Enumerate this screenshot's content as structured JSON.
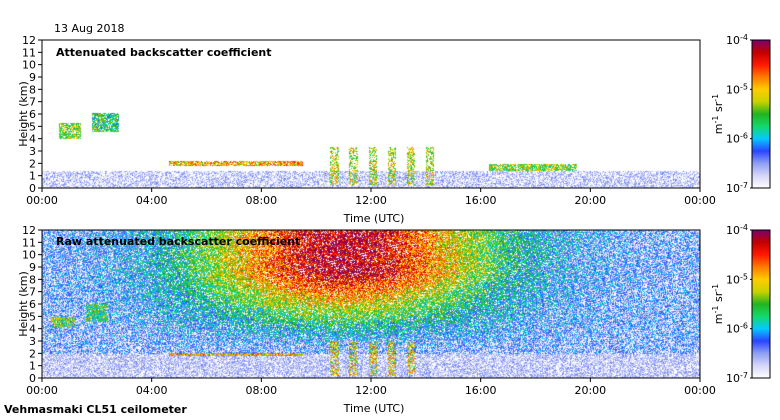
{
  "date": "13 Aug 2018",
  "footer": "Vehmasmaki CL51 ceilometer",
  "colors": {
    "colormap": [
      "#ffffff",
      "#d6d6f8",
      "#8e9ff4",
      "#2a45ff",
      "#06c8ff",
      "#13d96a",
      "#23b41f",
      "#c9d200",
      "#ffcc00",
      "#ff7a00",
      "#ff1800",
      "#c20000",
      "#7a006e"
    ]
  },
  "chart_data": [
    {
      "type": "heatmap",
      "title": "Attenuated backscatter coefficient",
      "xlabel": "Time (UTC)",
      "ylabel": "Height (km)",
      "x_ticks": [
        "00:00",
        "04:00",
        "08:00",
        "12:00",
        "16:00",
        "20:00",
        "00:00"
      ],
      "y_ticks": [
        "0",
        "1",
        "2",
        "3",
        "4",
        "5",
        "6",
        "7",
        "8",
        "9",
        "10",
        "11",
        "12"
      ],
      "xlim_hours": [
        0,
        24
      ],
      "ylim_km": [
        0,
        12
      ],
      "colorbar": {
        "scale": "log",
        "range": [
          1e-07,
          0.0001
        ],
        "tick_labels": [
          {
            "base": "10",
            "exp": "-4"
          },
          {
            "base": "10",
            "exp": "-5"
          },
          {
            "base": "10",
            "exp": "-6"
          },
          {
            "base": "10",
            "exp": "-7"
          }
        ],
        "unit": {
          "m": "m",
          "m_exp": "-1",
          "sr": " sr",
          "sr_exp": "-1"
        }
      },
      "features": [
        {
          "name": "boundary layer",
          "t_start": 0,
          "t_end": 24,
          "top_km": 1.4,
          "level": 0.15
        },
        {
          "name": "cloud 4.3-5.2 km",
          "t_start": 0.6,
          "t_end": 1.4,
          "h_low": 4.0,
          "h_high": 5.3,
          "level": 0.7
        },
        {
          "name": "cloud 5-6 km",
          "t_start": 1.8,
          "t_end": 2.8,
          "h_low": 4.6,
          "h_high": 6.1,
          "level": 0.6
        },
        {
          "name": "cloud layer ~2 km",
          "t_start": 4.6,
          "t_end": 9.5,
          "h_low": 1.8,
          "h_high": 2.2,
          "level": 0.85
        },
        {
          "name": "convective cells",
          "t_start": 10.5,
          "t_end": 14.5,
          "h_low": 0.3,
          "h_high": 3.4,
          "level": 0.75
        },
        {
          "name": "cloud ~1.8 km",
          "t_start": 16.3,
          "t_end": 19.5,
          "h_low": 1.4,
          "h_high": 2.0,
          "level": 0.7
        }
      ]
    },
    {
      "type": "heatmap",
      "title": "Raw attenuated backscatter coefficient",
      "xlabel": "Time (UTC)",
      "ylabel": "Height (km)",
      "x_ticks": [
        "00:00",
        "04:00",
        "08:00",
        "12:00",
        "16:00",
        "20:00",
        "00:00"
      ],
      "y_ticks": [
        "0",
        "1",
        "2",
        "3",
        "4",
        "5",
        "6",
        "7",
        "8",
        "9",
        "10",
        "11",
        "12"
      ],
      "xlim_hours": [
        0,
        24
      ],
      "ylim_km": [
        0,
        12
      ],
      "colorbar": {
        "scale": "log",
        "range": [
          1e-07,
          0.0001
        ],
        "tick_labels": [
          {
            "base": "10",
            "exp": "-4"
          },
          {
            "base": "10",
            "exp": "-5"
          },
          {
            "base": "10",
            "exp": "-6"
          },
          {
            "base": "10",
            "exp": "-7"
          }
        ],
        "unit": {
          "m": "m",
          "m_exp": "-1",
          "sr": " sr",
          "sr_exp": "-1"
        }
      },
      "features": [
        {
          "name": "daytime noise maximum",
          "t_peak": 11,
          "t_width": 5.5,
          "h_from": 4,
          "level": 0.95
        },
        {
          "name": "cloud 4.3-5.2 km",
          "t_start": 0.3,
          "t_end": 1.2,
          "h_low": 4.2,
          "h_high": 5.0,
          "level": 0.7
        },
        {
          "name": "cloud 5-6 km",
          "t_start": 1.6,
          "t_end": 2.4,
          "h_low": 4.6,
          "h_high": 6.0,
          "level": 0.65
        },
        {
          "name": "cloud layer ~2 km",
          "t_start": 4.6,
          "t_end": 9.5,
          "h_low": 1.8,
          "h_high": 2.1,
          "level": 0.85
        },
        {
          "name": "convective cells",
          "t_start": 10.5,
          "t_end": 14.0,
          "h_low": 0.2,
          "h_high": 3.0,
          "level": 0.8
        }
      ]
    }
  ]
}
